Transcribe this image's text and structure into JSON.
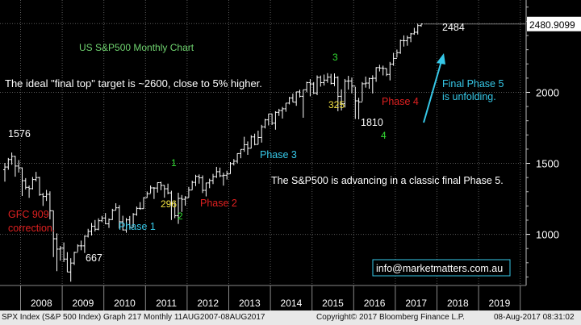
{
  "chart_data": {
    "type": "ohlc",
    "title": "US S&P500 Monthly Chart",
    "y_axis": {
      "ticks": [
        1000,
        1500,
        2000
      ],
      "ylim": [
        640,
        2650
      ],
      "position": "right"
    },
    "x_axis": {
      "labels": [
        "2008",
        "2009",
        "2010",
        "2011",
        "2012",
        "2013",
        "2014",
        "2015",
        "2016",
        "2017",
        "2018",
        "2019"
      ],
      "range": [
        "2007-08",
        "2019-12"
      ]
    },
    "last_price": "2480.9099",
    "grid": true,
    "series": [
      {
        "month": "2007-08",
        "o": 1455,
        "h": 1503,
        "l": 1371,
        "c": 1474
      },
      {
        "month": "2007-09",
        "o": 1474,
        "h": 1538,
        "l": 1455,
        "c": 1527
      },
      {
        "month": "2007-10",
        "o": 1527,
        "h": 1576,
        "l": 1490,
        "c": 1549
      },
      {
        "month": "2007-11",
        "o": 1549,
        "h": 1552,
        "l": 1406,
        "c": 1481
      },
      {
        "month": "2007-12",
        "o": 1481,
        "h": 1523,
        "l": 1435,
        "c": 1468
      },
      {
        "month": "2008-01",
        "o": 1468,
        "h": 1471,
        "l": 1270,
        "c": 1378
      },
      {
        "month": "2008-02",
        "o": 1378,
        "h": 1396,
        "l": 1316,
        "c": 1331
      },
      {
        "month": "2008-03",
        "o": 1331,
        "h": 1344,
        "l": 1257,
        "c": 1322
      },
      {
        "month": "2008-04",
        "o": 1322,
        "h": 1404,
        "l": 1316,
        "c": 1386
      },
      {
        "month": "2008-05",
        "o": 1386,
        "h": 1440,
        "l": 1373,
        "c": 1400
      },
      {
        "month": "2008-06",
        "o": 1400,
        "h": 1405,
        "l": 1272,
        "c": 1280
      },
      {
        "month": "2008-07",
        "o": 1280,
        "h": 1292,
        "l": 1200,
        "c": 1267
      },
      {
        "month": "2008-08",
        "o": 1267,
        "h": 1313,
        "l": 1235,
        "c": 1282
      },
      {
        "month": "2008-09",
        "o": 1282,
        "h": 1303,
        "l": 1106,
        "c": 1166
      },
      {
        "month": "2008-10",
        "o": 1166,
        "h": 1167,
        "l": 840,
        "c": 969
      },
      {
        "month": "2008-11",
        "o": 969,
        "h": 1007,
        "l": 741,
        "c": 896
      },
      {
        "month": "2008-12",
        "o": 896,
        "h": 918,
        "l": 815,
        "c": 903
      },
      {
        "month": "2009-01",
        "o": 903,
        "h": 943,
        "l": 805,
        "c": 826
      },
      {
        "month": "2009-02",
        "o": 826,
        "h": 875,
        "l": 735,
        "c": 735
      },
      {
        "month": "2009-03",
        "o": 735,
        "h": 832,
        "l": 667,
        "c": 798
      },
      {
        "month": "2009-04",
        "o": 798,
        "h": 877,
        "l": 784,
        "c": 873
      },
      {
        "month": "2009-05",
        "o": 873,
        "h": 930,
        "l": 878,
        "c": 919
      },
      {
        "month": "2009-06",
        "o": 919,
        "h": 956,
        "l": 888,
        "c": 919
      },
      {
        "month": "2009-07",
        "o": 919,
        "h": 993,
        "l": 869,
        "c": 987
      },
      {
        "month": "2009-08",
        "o": 987,
        "h": 1039,
        "l": 978,
        "c": 1021
      },
      {
        "month": "2009-09",
        "o": 1021,
        "h": 1080,
        "l": 992,
        "c": 1057
      },
      {
        "month": "2009-10",
        "o": 1057,
        "h": 1101,
        "l": 1020,
        "c": 1036
      },
      {
        "month": "2009-11",
        "o": 1036,
        "h": 1113,
        "l": 1029,
        "c": 1096
      },
      {
        "month": "2009-12",
        "o": 1096,
        "h": 1130,
        "l": 1086,
        "c": 1115
      },
      {
        "month": "2010-01",
        "o": 1115,
        "h": 1150,
        "l": 1071,
        "c": 1074
      },
      {
        "month": "2010-02",
        "o": 1074,
        "h": 1112,
        "l": 1045,
        "c": 1104
      },
      {
        "month": "2010-03",
        "o": 1104,
        "h": 1180,
        "l": 1101,
        "c": 1169
      },
      {
        "month": "2010-04",
        "o": 1169,
        "h": 1219,
        "l": 1170,
        "c": 1187
      },
      {
        "month": "2010-05",
        "o": 1187,
        "h": 1206,
        "l": 1040,
        "c": 1089
      },
      {
        "month": "2010-06",
        "o": 1089,
        "h": 1131,
        "l": 1028,
        "c": 1031
      },
      {
        "month": "2010-07",
        "o": 1031,
        "h": 1115,
        "l": 1011,
        "c": 1102
      },
      {
        "month": "2010-08",
        "o": 1102,
        "h": 1129,
        "l": 1040,
        "c": 1049
      },
      {
        "month": "2010-09",
        "o": 1049,
        "h": 1150,
        "l": 1048,
        "c": 1141
      },
      {
        "month": "2010-10",
        "o": 1141,
        "h": 1196,
        "l": 1131,
        "c": 1183
      },
      {
        "month": "2010-11",
        "o": 1183,
        "h": 1227,
        "l": 1173,
        "c": 1181
      },
      {
        "month": "2010-12",
        "o": 1181,
        "h": 1262,
        "l": 1180,
        "c": 1258
      },
      {
        "month": "2011-01",
        "o": 1258,
        "h": 1302,
        "l": 1257,
        "c": 1286
      },
      {
        "month": "2011-02",
        "o": 1286,
        "h": 1344,
        "l": 1290,
        "c": 1327
      },
      {
        "month": "2011-03",
        "o": 1327,
        "h": 1332,
        "l": 1249,
        "c": 1326
      },
      {
        "month": "2011-04",
        "o": 1326,
        "h": 1367,
        "l": 1294,
        "c": 1364
      },
      {
        "month": "2011-05",
        "o": 1364,
        "h": 1370,
        "l": 1311,
        "c": 1345
      },
      {
        "month": "2011-06",
        "o": 1345,
        "h": 1346,
        "l": 1258,
        "c": 1321
      },
      {
        "month": "2011-07",
        "o": 1321,
        "h": 1357,
        "l": 1282,
        "c": 1292
      },
      {
        "month": "2011-08",
        "o": 1292,
        "h": 1307,
        "l": 1101,
        "c": 1219
      },
      {
        "month": "2011-09",
        "o": 1219,
        "h": 1230,
        "l": 1114,
        "c": 1131
      },
      {
        "month": "2011-10",
        "o": 1131,
        "h": 1293,
        "l": 1074,
        "c": 1253
      },
      {
        "month": "2011-11",
        "o": 1253,
        "h": 1277,
        "l": 1158,
        "c": 1247
      },
      {
        "month": "2011-12",
        "o": 1247,
        "h": 1270,
        "l": 1202,
        "c": 1258
      },
      {
        "month": "2012-01",
        "o": 1258,
        "h": 1334,
        "l": 1258,
        "c": 1312
      },
      {
        "month": "2012-02",
        "o": 1312,
        "h": 1378,
        "l": 1312,
        "c": 1366
      },
      {
        "month": "2012-03",
        "o": 1366,
        "h": 1419,
        "l": 1340,
        "c": 1408
      },
      {
        "month": "2012-04",
        "o": 1408,
        "h": 1422,
        "l": 1357,
        "c": 1398
      },
      {
        "month": "2012-05",
        "o": 1398,
        "h": 1415,
        "l": 1291,
        "c": 1310
      },
      {
        "month": "2012-06",
        "o": 1310,
        "h": 1363,
        "l": 1267,
        "c": 1362
      },
      {
        "month": "2012-07",
        "o": 1362,
        "h": 1392,
        "l": 1325,
        "c": 1379
      },
      {
        "month": "2012-08",
        "o": 1379,
        "h": 1426,
        "l": 1354,
        "c": 1407
      },
      {
        "month": "2012-09",
        "o": 1407,
        "h": 1475,
        "l": 1397,
        "c": 1441
      },
      {
        "month": "2012-10",
        "o": 1441,
        "h": 1470,
        "l": 1403,
        "c": 1412
      },
      {
        "month": "2012-11",
        "o": 1412,
        "h": 1434,
        "l": 1343,
        "c": 1416
      },
      {
        "month": "2012-12",
        "o": 1416,
        "h": 1448,
        "l": 1386,
        "c": 1426
      },
      {
        "month": "2013-01",
        "o": 1426,
        "h": 1509,
        "l": 1426,
        "c": 1498
      },
      {
        "month": "2013-02",
        "o": 1498,
        "h": 1530,
        "l": 1485,
        "c": 1515
      },
      {
        "month": "2013-03",
        "o": 1515,
        "h": 1570,
        "l": 1501,
        "c": 1569
      },
      {
        "month": "2013-04",
        "o": 1569,
        "h": 1598,
        "l": 1536,
        "c": 1598
      },
      {
        "month": "2013-05",
        "o": 1598,
        "h": 1687,
        "l": 1581,
        "c": 1631
      },
      {
        "month": "2013-06",
        "o": 1631,
        "h": 1654,
        "l": 1560,
        "c": 1606
      },
      {
        "month": "2013-07",
        "o": 1606,
        "h": 1698,
        "l": 1605,
        "c": 1686
      },
      {
        "month": "2013-08",
        "o": 1686,
        "h": 1709,
        "l": 1627,
        "c": 1633
      },
      {
        "month": "2013-09",
        "o": 1633,
        "h": 1730,
        "l": 1633,
        "c": 1682
      },
      {
        "month": "2013-10",
        "o": 1682,
        "h": 1771,
        "l": 1646,
        "c": 1757
      },
      {
        "month": "2013-11",
        "o": 1757,
        "h": 1813,
        "l": 1746,
        "c": 1806
      },
      {
        "month": "2013-12",
        "o": 1806,
        "h": 1849,
        "l": 1767,
        "c": 1848
      },
      {
        "month": "2014-01",
        "o": 1848,
        "h": 1850,
        "l": 1770,
        "c": 1783
      },
      {
        "month": "2014-02",
        "o": 1783,
        "h": 1867,
        "l": 1737,
        "c": 1859
      },
      {
        "month": "2014-03",
        "o": 1859,
        "h": 1884,
        "l": 1834,
        "c": 1872
      },
      {
        "month": "2014-04",
        "o": 1872,
        "h": 1897,
        "l": 1815,
        "c": 1884
      },
      {
        "month": "2014-05",
        "o": 1884,
        "h": 1924,
        "l": 1863,
        "c": 1924
      },
      {
        "month": "2014-06",
        "o": 1924,
        "h": 1968,
        "l": 1915,
        "c": 1960
      },
      {
        "month": "2014-07",
        "o": 1960,
        "h": 1991,
        "l": 1930,
        "c": 1931
      },
      {
        "month": "2014-08",
        "o": 1931,
        "h": 2005,
        "l": 1905,
        "c": 2003
      },
      {
        "month": "2014-09",
        "o": 2003,
        "h": 2019,
        "l": 1964,
        "c": 1972
      },
      {
        "month": "2014-10",
        "o": 1972,
        "h": 2018,
        "l": 1821,
        "c": 2018
      },
      {
        "month": "2014-11",
        "o": 2018,
        "h": 2075,
        "l": 2001,
        "c": 2068
      },
      {
        "month": "2014-12",
        "o": 2068,
        "h": 2093,
        "l": 1972,
        "c": 2059
      },
      {
        "month": "2015-01",
        "o": 2059,
        "h": 2072,
        "l": 1988,
        "c": 1995
      },
      {
        "month": "2015-02",
        "o": 1995,
        "h": 2119,
        "l": 1980,
        "c": 2105
      },
      {
        "month": "2015-03",
        "o": 2105,
        "h": 2118,
        "l": 2040,
        "c": 2068
      },
      {
        "month": "2015-04",
        "o": 2068,
        "h": 2125,
        "l": 2048,
        "c": 2086
      },
      {
        "month": "2015-05",
        "o": 2086,
        "h": 2135,
        "l": 2067,
        "c": 2107
      },
      {
        "month": "2015-06",
        "o": 2107,
        "h": 2130,
        "l": 2056,
        "c": 2063
      },
      {
        "month": "2015-07",
        "o": 2063,
        "h": 2133,
        "l": 2044,
        "c": 2104
      },
      {
        "month": "2015-08",
        "o": 2104,
        "h": 2113,
        "l": 1867,
        "c": 1972
      },
      {
        "month": "2015-09",
        "o": 1972,
        "h": 2021,
        "l": 1872,
        "c": 1920
      },
      {
        "month": "2015-10",
        "o": 1920,
        "h": 2094,
        "l": 1893,
        "c": 2079
      },
      {
        "month": "2015-11",
        "o": 2079,
        "h": 2116,
        "l": 2019,
        "c": 2080
      },
      {
        "month": "2015-12",
        "o": 2080,
        "h": 2104,
        "l": 1993,
        "c": 2044
      },
      {
        "month": "2016-01",
        "o": 2044,
        "h": 2038,
        "l": 1812,
        "c": 1940
      },
      {
        "month": "2016-02",
        "o": 1940,
        "h": 1962,
        "l": 1810,
        "c": 1932
      },
      {
        "month": "2016-03",
        "o": 1932,
        "h": 2072,
        "l": 1937,
        "c": 2060
      },
      {
        "month": "2016-04",
        "o": 2060,
        "h": 2111,
        "l": 2033,
        "c": 2065
      },
      {
        "month": "2016-05",
        "o": 2065,
        "h": 2103,
        "l": 2025,
        "c": 2097
      },
      {
        "month": "2016-06",
        "o": 2097,
        "h": 2120,
        "l": 1992,
        "c": 2099
      },
      {
        "month": "2016-07",
        "o": 2099,
        "h": 2177,
        "l": 2074,
        "c": 2174
      },
      {
        "month": "2016-08",
        "o": 2174,
        "h": 2194,
        "l": 2147,
        "c": 2171
      },
      {
        "month": "2016-09",
        "o": 2171,
        "h": 2188,
        "l": 2119,
        "c": 2168
      },
      {
        "month": "2016-10",
        "o": 2168,
        "h": 2169,
        "l": 2114,
        "c": 2126
      },
      {
        "month": "2016-11",
        "o": 2126,
        "h": 2214,
        "l": 2084,
        "c": 2199
      },
      {
        "month": "2016-12",
        "o": 2199,
        "h": 2278,
        "l": 2187,
        "c": 2239
      },
      {
        "month": "2017-01",
        "o": 2239,
        "h": 2301,
        "l": 2245,
        "c": 2279
      },
      {
        "month": "2017-02",
        "o": 2279,
        "h": 2371,
        "l": 2271,
        "c": 2364
      },
      {
        "month": "2017-03",
        "o": 2364,
        "h": 2401,
        "l": 2322,
        "c": 2363
      },
      {
        "month": "2017-04",
        "o": 2363,
        "h": 2399,
        "l": 2328,
        "c": 2384
      },
      {
        "month": "2017-05",
        "o": 2384,
        "h": 2418,
        "l": 2353,
        "c": 2412
      },
      {
        "month": "2017-06",
        "o": 2412,
        "h": 2454,
        "l": 2405,
        "c": 2423
      },
      {
        "month": "2017-07",
        "o": 2423,
        "h": 2484,
        "l": 2407,
        "c": 2470
      },
      {
        "month": "2017-08",
        "o": 2470,
        "h": 2484,
        "l": 2462,
        "c": 2481
      }
    ],
    "annotations": [
      {
        "text": "US S&P500 Monthly Chart",
        "color": "#6fd36f"
      },
      {
        "text": "The ideal \"final top\" target is ~2600, close to 5% higher.",
        "color": "#ffffff"
      },
      {
        "text": "The S&P500 is advancing in a classic final Phase 5.",
        "color": "#ffffff"
      },
      {
        "text": "Final Phase 5",
        "color": "#36c8e8"
      },
      {
        "text": "is unfolding.",
        "color": "#36c8e8"
      },
      {
        "text": "1576",
        "color": "#ffffff"
      },
      {
        "text": "667",
        "color": "#ffffff"
      },
      {
        "text": "1810",
        "color": "#ffffff"
      },
      {
        "text": "2484",
        "color": "#ffffff"
      },
      {
        "text": "GFC 909",
        "color": "#e02020"
      },
      {
        "text": "correction.",
        "color": "#e02020"
      },
      {
        "text": "Phase 1",
        "color": "#36c8e8"
      },
      {
        "text": "Phase 2",
        "color": "#e02020"
      },
      {
        "text": "Phase 3",
        "color": "#36c8e8"
      },
      {
        "text": "Phase 4",
        "color": "#e02020"
      },
      {
        "text": "1",
        "color": "#33dd33"
      },
      {
        "text": "2",
        "color": "#33dd33"
      },
      {
        "text": "3",
        "color": "#33dd33"
      },
      {
        "text": "4",
        "color": "#33dd33"
      },
      {
        "text": "296",
        "color": "#f0e040"
      },
      {
        "text": "325",
        "color": "#f0e040"
      }
    ],
    "watermark": "info@marketmatters.com.au",
    "colors": {
      "background": "#000000",
      "bars": "#ffffff",
      "grid": "#5a5a5a",
      "axis_text": "#ffffff",
      "price_box": "#ffffff"
    }
  },
  "footer": {
    "left": "SPX Index (S&P 500 Index) Graph 217  Monthly 11AUG2007-08AUG2017",
    "center": "Copyright© 2017 Bloomberg Finance L.P.",
    "right": "08-Aug-2017 08:31:02"
  }
}
